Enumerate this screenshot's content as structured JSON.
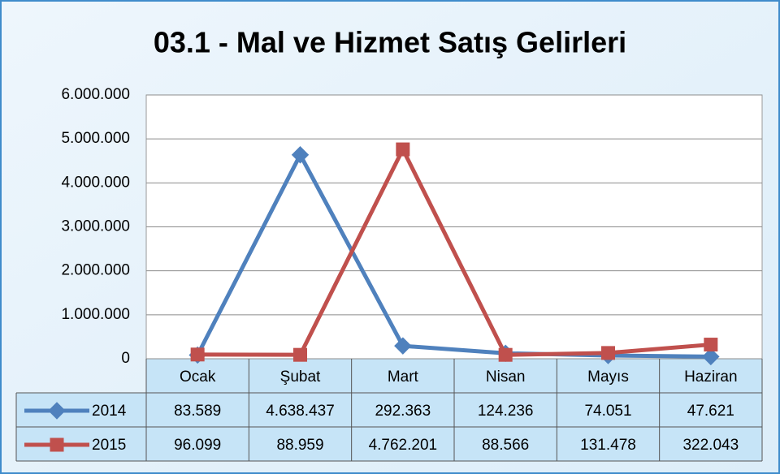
{
  "chart_data": {
    "type": "line",
    "title": "03.1 - Mal ve Hizmet Satış Gelirleri",
    "categories": [
      "Ocak",
      "Şubat",
      "Mart",
      "Nisan",
      "Mayıs",
      "Haziran"
    ],
    "series": [
      {
        "name": "2014",
        "color": "#4f81bd",
        "marker": "diamond",
        "values": [
          83589,
          4638437,
          292363,
          124236,
          74051,
          47621
        ],
        "value_labels": [
          "83.589",
          "4.638.437",
          "292.363",
          "124.236",
          "74.051",
          "47.621"
        ]
      },
      {
        "name": "2015",
        "color": "#c0504d",
        "marker": "square",
        "values": [
          96099,
          88959,
          4762201,
          88566,
          131478,
          322043
        ],
        "value_labels": [
          "96.099",
          "88.959",
          "4.762.201",
          "88.566",
          "131.478",
          "322.043"
        ]
      }
    ],
    "ylim": [
      0,
      6000000
    ],
    "yticks": [
      0,
      {
        "value": 1000000,
        "label": "1.000.000"
      },
      {
        "value": 2000000,
        "label": "2.000.000"
      },
      {
        "value": 3000000,
        "label": "3.000.000"
      },
      {
        "value": 4000000,
        "label": "4.000.000"
      },
      {
        "value": 5000000,
        "label": "5.000.000"
      },
      {
        "value": 6000000,
        "label": "6.000.000"
      }
    ],
    "grid": true
  }
}
